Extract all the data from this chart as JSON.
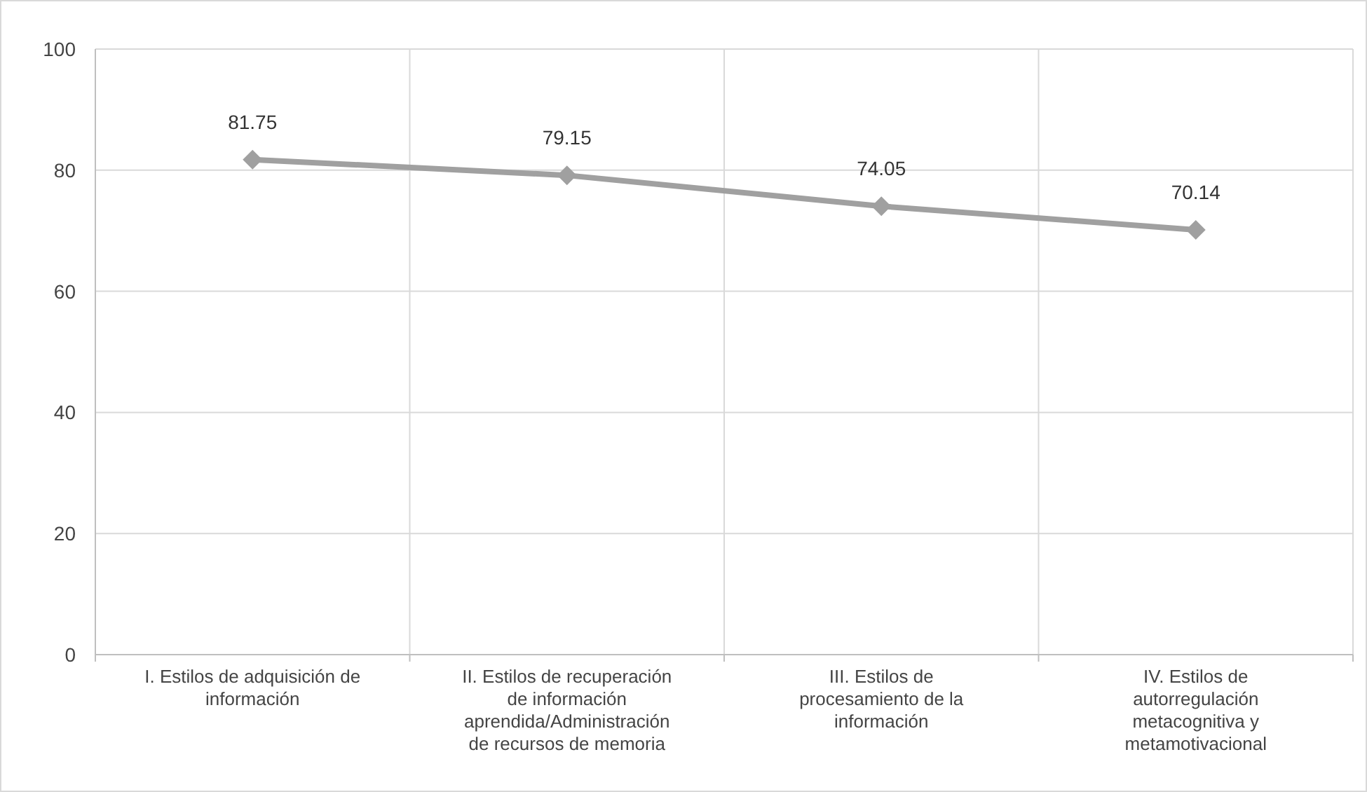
{
  "chart_data": {
    "type": "line",
    "categories": [
      "I. Estilos de adquisición de información",
      "II. Estilos de recuperación de información aprendida/Administración de recursos de memoria",
      "III. Estilos de procesamiento de la información",
      "IV. Estilos de autorregulación metacognitiva y metamotivacional"
    ],
    "series": [
      {
        "color": "#a0a0a0",
        "values": [
          81.75,
          79.15,
          74.05,
          70.14
        ]
      }
    ],
    "ylim": [
      0,
      100
    ],
    "yticks": [
      0,
      20,
      40,
      60,
      80,
      100
    ],
    "grid": true,
    "marker": "diamond",
    "line_style": "solid",
    "data_labels": true
  }
}
